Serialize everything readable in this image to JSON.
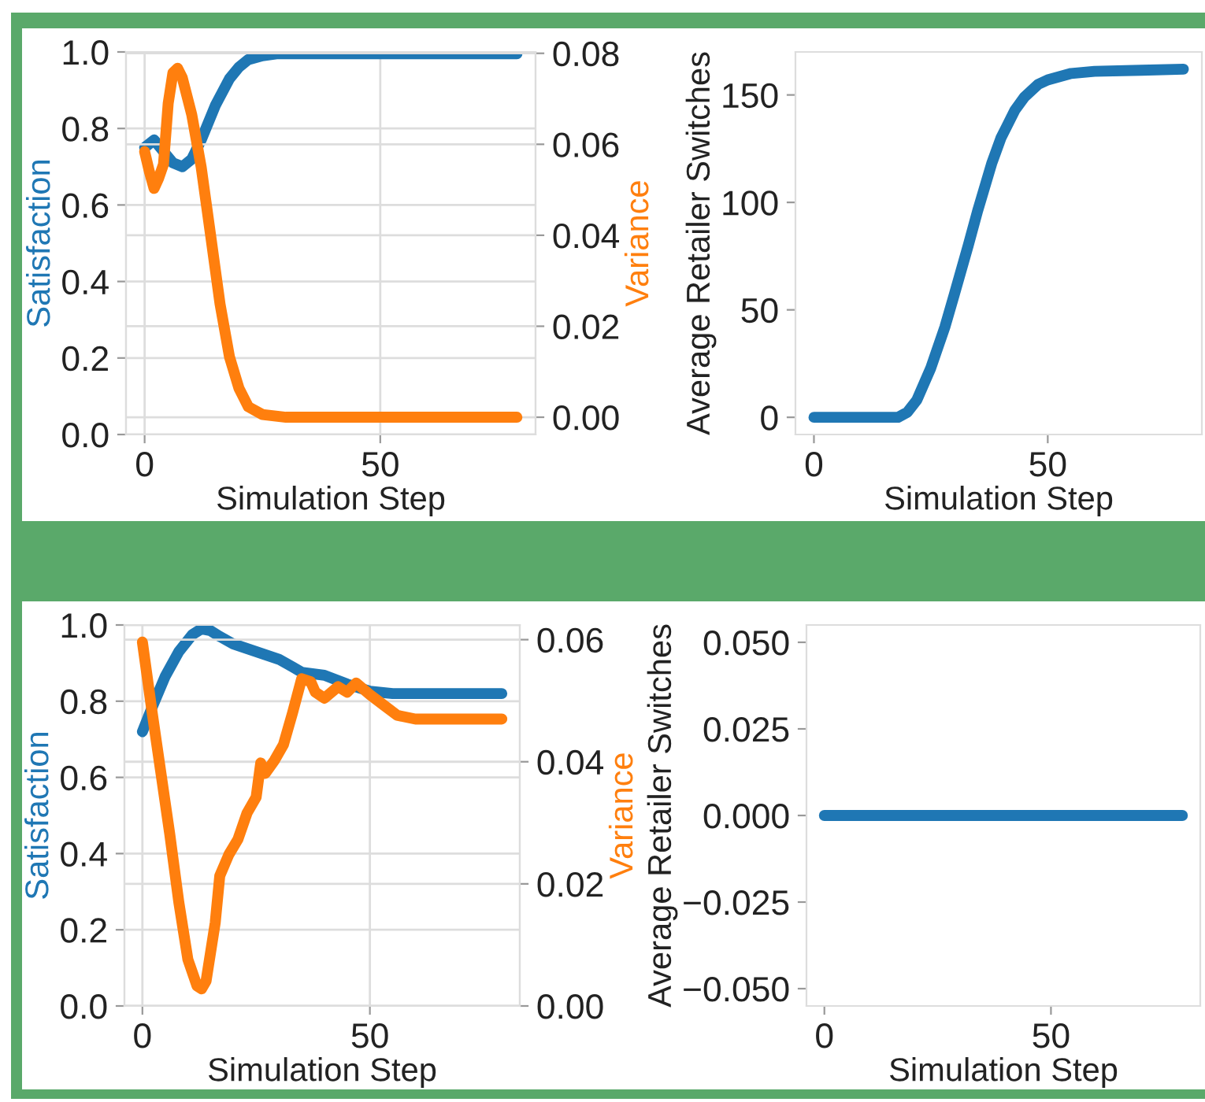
{
  "chart_data": [
    {
      "type": "line",
      "xlabel": "Simulation Step",
      "ylabel": "Satisfaction",
      "y2label": "Variance",
      "xlim": [
        -3.95,
        82.95
      ],
      "xticks": [
        0,
        50
      ],
      "ylim": [
        0,
        1.0
      ],
      "yticks": [
        {
          "value": 0,
          "label": "0.0"
        },
        0.2,
        0.4,
        0.6,
        0.8,
        {
          "value": 1,
          "label": "1.0"
        }
      ],
      "y2lim": [
        -0.0038,
        0.0803
      ],
      "y2ticks": [
        {
          "value": 0,
          "label": "0.00"
        },
        {
          "value": 0.02,
          "label": "0.02"
        },
        {
          "value": 0.04,
          "label": "0.04"
        },
        {
          "value": 0.06,
          "label": "0.06"
        },
        {
          "value": 0.08,
          "label": "0.08"
        }
      ],
      "grid": true,
      "marker": "none",
      "line_style": "solid",
      "series": [
        {
          "color": "#1f77b4",
          "x": [
            0,
            2,
            4,
            6,
            8,
            10,
            12,
            15,
            18,
            20,
            22,
            25,
            28,
            30,
            40,
            60,
            79
          ],
          "values": [
            0.75,
            0.77,
            0.74,
            0.71,
            0.7,
            0.72,
            0.77,
            0.86,
            0.93,
            0.96,
            0.98,
            0.99,
            0.995,
            0.995,
            0.995,
            0.995,
            0.995
          ]
        },
        {
          "color": "#ff7f0e",
          "axis": "y2",
          "x": [
            0,
            1,
            2,
            3,
            4,
            5,
            6,
            7,
            8,
            10,
            12,
            14,
            16,
            18,
            20,
            22,
            25,
            30,
            40,
            60,
            79
          ],
          "values": [
            0.0584,
            0.054,
            0.0503,
            0.0526,
            0.0556,
            0.069,
            0.0757,
            0.0767,
            0.0746,
            0.0665,
            0.055,
            0.04,
            0.0249,
            0.0133,
            0.0064,
            0.0023,
            0.0006,
            0.0,
            0.0,
            0.0,
            0.0
          ]
        }
      ]
    },
    {
      "type": "line",
      "xlabel": "Simulation Step",
      "ylabel": "Average Retailer Switches",
      "xlim": [
        -3.95,
        82.95
      ],
      "xticks": [
        0,
        50
      ],
      "ylim": [
        -8,
        170
      ],
      "yticks": [
        0,
        50,
        100,
        150
      ],
      "marker": "none",
      "line_style": "solid",
      "series": [
        {
          "color": "#1f77b4",
          "x": [
            0,
            10,
            18,
            20,
            22,
            25,
            28,
            30,
            33,
            35,
            38,
            40,
            43,
            45,
            48,
            50,
            55,
            60,
            70,
            79
          ],
          "values": [
            0,
            0,
            0,
            2.4,
            8,
            23,
            42,
            57,
            80,
            96,
            118,
            130,
            143,
            149,
            155,
            157,
            160,
            161,
            161.5,
            162
          ]
        }
      ]
    },
    {
      "type": "line",
      "xlabel": "Simulation Step",
      "ylabel": "Satisfaction",
      "y2label": "Variance",
      "xlim": [
        -3.95,
        82.95
      ],
      "xticks": [
        0,
        50
      ],
      "ylim": [
        0,
        1.0
      ],
      "yticks": [
        {
          "value": 0,
          "label": "0.0"
        },
        0.2,
        0.4,
        0.6,
        0.8,
        {
          "value": 1,
          "label": "1.0"
        }
      ],
      "y2lim": [
        0,
        0.0624
      ],
      "y2ticks": [
        {
          "value": 0,
          "label": "0.00"
        },
        {
          "value": 0.02,
          "label": "0.02"
        },
        {
          "value": 0.04,
          "label": "0.04"
        },
        {
          "value": 0.06,
          "label": "0.06"
        }
      ],
      "grid": true,
      "marker": "none",
      "line_style": "solid",
      "series": [
        {
          "color": "#1f77b4",
          "x": [
            0,
            2,
            5,
            8,
            11,
            13,
            15,
            17,
            20,
            25,
            30,
            33,
            35,
            40,
            45,
            50,
            55,
            60,
            79
          ],
          "values": [
            0.72,
            0.78,
            0.865,
            0.93,
            0.975,
            0.99,
            0.985,
            0.97,
            0.95,
            0.93,
            0.91,
            0.89,
            0.876,
            0.868,
            0.845,
            0.826,
            0.82,
            0.82,
            0.82
          ]
        },
        {
          "color": "#ff7f0e",
          "axis": "y2",
          "x": [
            0,
            2,
            4,
            6,
            8,
            10,
            12,
            13,
            14,
            16,
            17,
            19,
            21,
            23,
            25,
            26,
            27,
            29,
            31,
            33,
            35,
            37,
            38,
            40,
            43,
            45,
            47,
            50,
            53,
            56,
            60,
            79
          ],
          "values": [
            0.0596,
            0.0488,
            0.0385,
            0.0282,
            0.017,
            0.0076,
            0.0033,
            0.0028,
            0.0041,
            0.0136,
            0.0213,
            0.0248,
            0.0273,
            0.0316,
            0.0342,
            0.0398,
            0.0381,
            0.0402,
            0.0428,
            0.048,
            0.0536,
            0.0531,
            0.0514,
            0.0504,
            0.0523,
            0.0514,
            0.0529,
            0.051,
            0.0493,
            0.0476,
            0.047,
            0.047
          ]
        }
      ]
    },
    {
      "type": "line",
      "xlabel": "Simulation Step",
      "ylabel": "Average Retailer Switches",
      "xlim": [
        -3.95,
        82.95
      ],
      "xticks": [
        0,
        50
      ],
      "ylim": [
        -0.055,
        0.055
      ],
      "yticks": [
        {
          "value": -0.05,
          "label": "−0.050"
        },
        {
          "value": -0.025,
          "label": "−0.025"
        },
        {
          "value": 0,
          "label": "0.000"
        },
        {
          "value": 0.025,
          "label": "0.025"
        },
        {
          "value": 0.05,
          "label": "0.050"
        }
      ],
      "marker": "none",
      "line_style": "solid",
      "series": [
        {
          "color": "#1f77b4",
          "x": [
            0,
            79
          ],
          "values": [
            0,
            0
          ]
        }
      ]
    }
  ]
}
